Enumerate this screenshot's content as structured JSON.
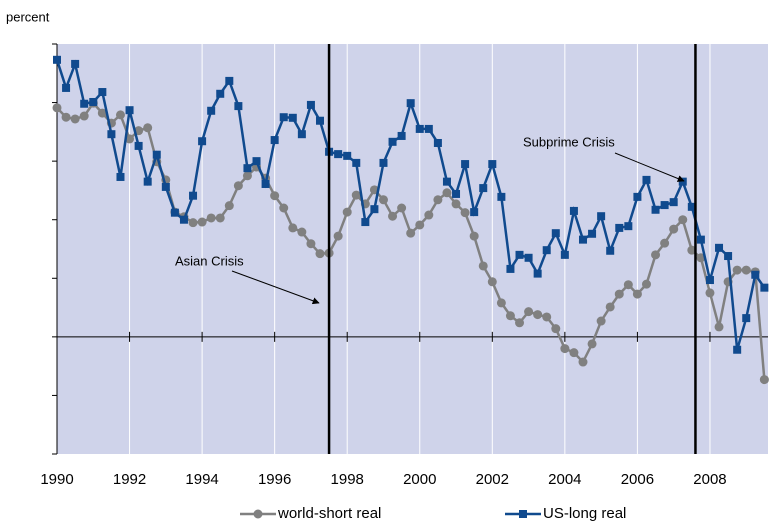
{
  "chart_data": {
    "type": "line",
    "y_label": "percent",
    "x": [
      1990,
      1990.25,
      1990.5,
      1990.75,
      1991,
      1991.25,
      1991.5,
      1991.75,
      1992,
      1992.25,
      1992.5,
      1992.75,
      1993,
      1993.25,
      1993.5,
      1993.75,
      1994,
      1994.25,
      1994.5,
      1994.75,
      1995,
      1995.25,
      1995.5,
      1995.75,
      1996,
      1996.25,
      1996.5,
      1996.75,
      1997,
      1997.25,
      1997.5,
      1997.75,
      1998,
      1998.25,
      1998.5,
      1998.75,
      1999,
      1999.25,
      1999.5,
      1999.75,
      2000,
      2000.25,
      2000.5,
      2000.75,
      2001,
      2001.25,
      2001.5,
      2001.75,
      2002,
      2002.25,
      2002.5,
      2002.75,
      2003,
      2003.25,
      2003.5,
      2003.75,
      2004,
      2004.25,
      2004.5,
      2004.75,
      2005,
      2005.25,
      2005.5,
      2005.75,
      2006,
      2006.25,
      2006.5,
      2006.75,
      2007,
      2007.25,
      2007.5,
      2007.75,
      2008,
      2008.25,
      2008.5,
      2008.75,
      2009,
      2009.25,
      2009.5
    ],
    "series": [
      {
        "name": "world-short real",
        "color": "#808080",
        "marker": "circle",
        "values": [
          3.91,
          3.75,
          3.72,
          3.77,
          3.99,
          3.82,
          3.65,
          3.79,
          3.38,
          3.52,
          3.57,
          2.99,
          2.68,
          2.13,
          2.05,
          1.95,
          1.96,
          2.03,
          2.03,
          2.24,
          2.58,
          2.75,
          2.9,
          2.71,
          2.41,
          2.2,
          1.86,
          1.79,
          1.59,
          1.42,
          1.43,
          1.72,
          2.13,
          2.42,
          2.27,
          2.51,
          2.34,
          2.06,
          2.2,
          1.77,
          1.91,
          2.08,
          2.34,
          2.46,
          2.27,
          2.12,
          1.72,
          1.21,
          0.94,
          0.58,
          0.36,
          0.24,
          0.43,
          0.38,
          0.34,
          0.14,
          -0.2,
          -0.27,
          -0.43,
          -0.12,
          0.27,
          0.51,
          0.73,
          0.89,
          0.73,
          0.9,
          1.4,
          1.6,
          1.84,
          2.0,
          1.48,
          1.35,
          0.75,
          0.17,
          0.94,
          1.14,
          1.14,
          1.11,
          -0.73
        ]
      },
      {
        "name": "US-long real",
        "color": "#104a8e",
        "marker": "square",
        "values": [
          4.73,
          4.25,
          4.66,
          3.98,
          4.01,
          4.18,
          3.46,
          2.73,
          3.87,
          3.26,
          2.65,
          3.11,
          2.56,
          2.12,
          2.0,
          2.41,
          3.34,
          3.86,
          4.15,
          4.37,
          3.94,
          2.88,
          3.0,
          2.61,
          3.36,
          3.75,
          3.74,
          3.46,
          3.96,
          3.69,
          3.16,
          3.12,
          3.09,
          2.97,
          1.96,
          2.18,
          2.97,
          3.33,
          3.43,
          3.99,
          3.55,
          3.55,
          3.31,
          2.65,
          2.44,
          2.95,
          2.13,
          2.54,
          2.95,
          2.39,
          1.16,
          1.4,
          1.35,
          1.08,
          1.48,
          1.77,
          1.4,
          2.15,
          1.66,
          1.76,
          2.06,
          1.47,
          1.86,
          1.89,
          2.39,
          2.68,
          2.17,
          2.25,
          2.3,
          2.65,
          2.22,
          1.66,
          0.97,
          1.52,
          1.38,
          -0.22,
          0.32,
          1.06,
          0.84
        ]
      }
    ],
    "xlim": [
      1990,
      2009.6
    ],
    "xticks": [
      1990,
      1992,
      1994,
      1996,
      1998,
      2000,
      2002,
      2004,
      2006,
      2008
    ],
    "ylim": [
      -2,
      5
    ],
    "yticks": [
      -2,
      -1,
      0,
      1,
      2,
      3,
      4,
      5
    ],
    "vlines": [
      1997.5,
      2007.6
    ],
    "annotations": [
      "Asian Crisis",
      "Subprime Crisis"
    ],
    "legend": "bottom",
    "grid": true,
    "background": "#cfd3ea"
  }
}
